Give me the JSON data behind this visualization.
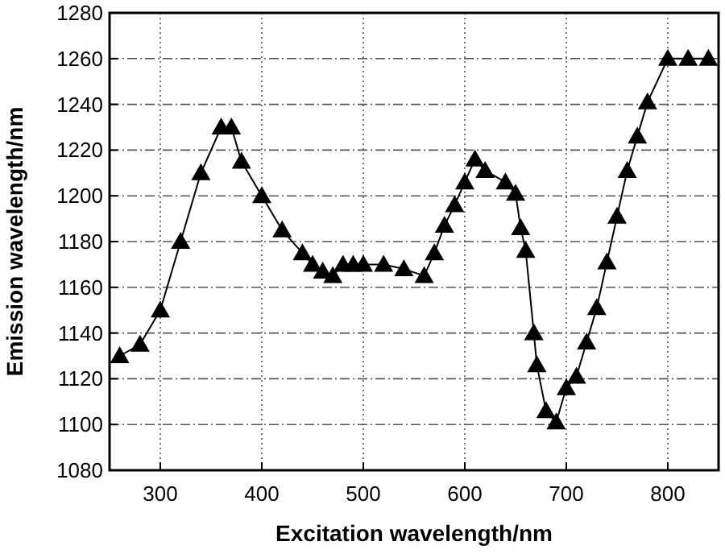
{
  "chart_data": {
    "type": "line",
    "xlabel": "Excitation wavelength/nm",
    "ylabel": "Emission wavelength/nm",
    "xlim": [
      250,
      850
    ],
    "xticks": [
      300,
      400,
      500,
      600,
      700,
      800
    ],
    "ylim": [
      1080,
      1280
    ],
    "yticks": [
      1080,
      1100,
      1120,
      1140,
      1160,
      1180,
      1200,
      1220,
      1240,
      1260,
      1280
    ],
    "grid": true,
    "marker": "triangle",
    "line_style": "solid",
    "series": [
      {
        "color": "#000000",
        "x": [
          260,
          280,
          300,
          320,
          340,
          360,
          370,
          380,
          400,
          420,
          440,
          450,
          460,
          470,
          480,
          490,
          500,
          520,
          540,
          560,
          570,
          580,
          590,
          600,
          610,
          620,
          640,
          650,
          655,
          660,
          668,
          671,
          680,
          690,
          700,
          710,
          720,
          730,
          740,
          750,
          760,
          770,
          780,
          800,
          820,
          840
        ],
        "values": [
          1130,
          1135,
          1150,
          1180,
          1210,
          1230,
          1230,
          1215,
          1200,
          1185,
          1175,
          1170,
          1167,
          1165,
          1170,
          1170,
          1170,
          1170,
          1168,
          1165,
          1175,
          1187,
          1196,
          1206,
          1216,
          1211,
          1206,
          1201,
          1186,
          1176,
          1140,
          1126,
          1106,
          1101,
          1116,
          1121,
          1136,
          1151,
          1171,
          1191,
          1211,
          1226,
          1241,
          1260,
          1260,
          1260
        ]
      }
    ]
  }
}
